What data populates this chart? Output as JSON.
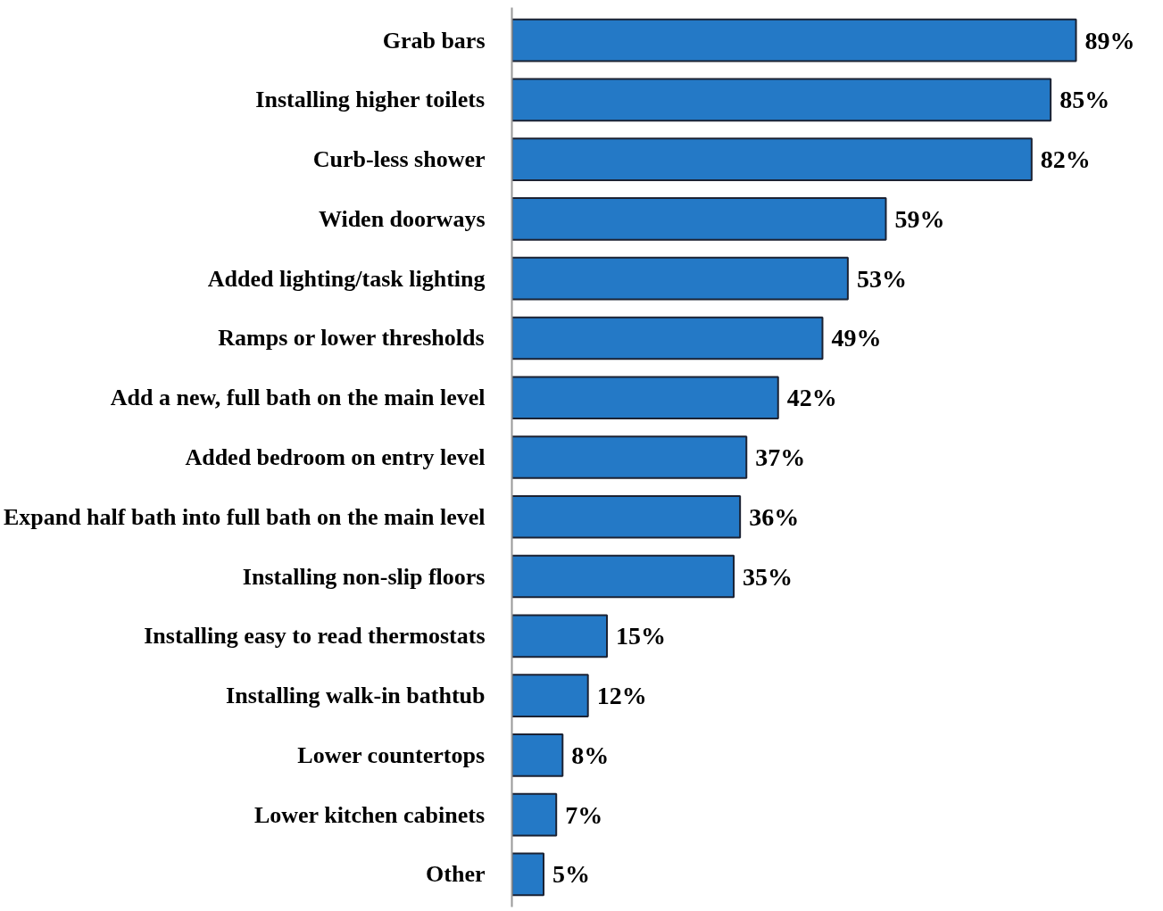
{
  "chart_data": {
    "type": "bar",
    "orientation": "horizontal",
    "categories": [
      "Grab bars",
      "Installing higher toilets",
      "Curb-less shower",
      "Widen doorways",
      "Added lighting/task lighting",
      "Ramps or lower thresholds",
      "Add a new, full bath on the main level",
      "Added bedroom on entry level",
      "Expand half bath into full bath on the main level",
      "Installing non-slip floors",
      "Installing easy to read thermostats",
      "Installing walk-in bathtub",
      "Lower countertops",
      "Lower kitchen cabinets",
      "Other"
    ],
    "values": [
      89,
      85,
      82,
      59,
      53,
      49,
      42,
      37,
      36,
      35,
      15,
      12,
      8,
      7,
      5
    ],
    "value_labels": [
      "89%",
      "85%",
      "82%",
      "59%",
      "53%",
      "49%",
      "42%",
      "37%",
      "36%",
      "35%",
      "15%",
      "12%",
      "8%",
      "7%",
      "5%"
    ],
    "color": "#2479c6",
    "tick_labels": "y"
  }
}
